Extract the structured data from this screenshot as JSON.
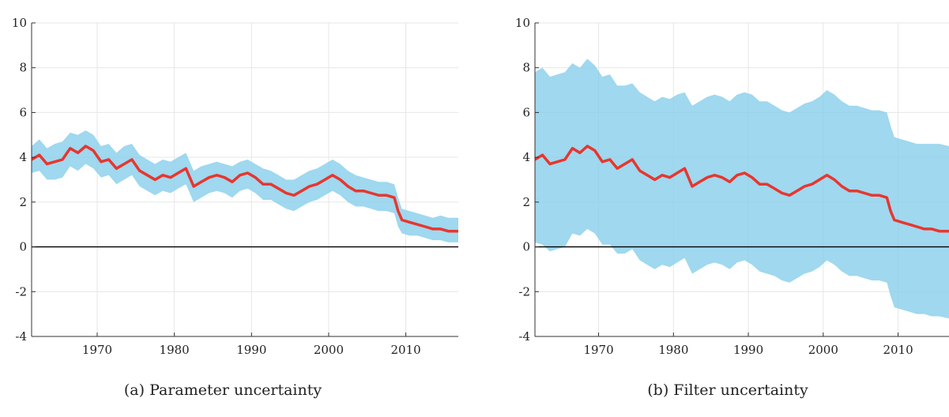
{
  "chart_data": [
    {
      "type": "area",
      "caption": "(a) Parameter uncertainty",
      "xlim": [
        1961.5,
        2016.8
      ],
      "ylim": [
        -4,
        10
      ],
      "x_ticks": [
        1970,
        1980,
        1990,
        2000,
        2010
      ],
      "y_ticks": [
        -4,
        -2,
        0,
        2,
        4,
        6,
        8,
        10
      ],
      "grid": true,
      "zero_line": true,
      "series": [
        {
          "role": "median",
          "color": "#e8362e",
          "x": [
            1961.5,
            1962.5,
            1963.5,
            1964.5,
            1965.5,
            1966.5,
            1967.5,
            1968.5,
            1969.5,
            1970.5,
            1971.5,
            1972.5,
            1973.5,
            1974.5,
            1975.5,
            1976.5,
            1977.5,
            1978.5,
            1979.5,
            1980.5,
            1981.5,
            1982.5,
            1983.5,
            1984.5,
            1985.5,
            1986.5,
            1987.5,
            1988.5,
            1989.5,
            1990.5,
            1991.5,
            1992.5,
            1993.5,
            1994.5,
            1995.5,
            1996.5,
            1997.5,
            1998.5,
            1999.5,
            2000.5,
            2001.5,
            2002.5,
            2003.5,
            2004.5,
            2005.5,
            2006.5,
            2007.5,
            2008.5,
            2009.0,
            2009.5,
            2010.5,
            2011.5,
            2012.5,
            2013.5,
            2014.5,
            2015.5,
            2016.8
          ],
          "y": [
            3.9,
            4.1,
            3.7,
            3.8,
            3.9,
            4.4,
            4.2,
            4.5,
            4.3,
            3.8,
            3.9,
            3.5,
            3.7,
            3.9,
            3.4,
            3.2,
            3.0,
            3.2,
            3.1,
            3.3,
            3.5,
            2.7,
            2.9,
            3.1,
            3.2,
            3.1,
            2.9,
            3.2,
            3.3,
            3.1,
            2.8,
            2.8,
            2.6,
            2.4,
            2.3,
            2.5,
            2.7,
            2.8,
            3.0,
            3.2,
            3.0,
            2.7,
            2.5,
            2.5,
            2.4,
            2.3,
            2.3,
            2.2,
            1.6,
            1.2,
            1.1,
            1.0,
            0.9,
            0.8,
            0.8,
            0.7,
            0.7
          ]
        },
        {
          "role": "band",
          "color": "#87ceeb",
          "x": [
            1961.5,
            1962.5,
            1963.5,
            1964.5,
            1965.5,
            1966.5,
            1967.5,
            1968.5,
            1969.5,
            1970.5,
            1971.5,
            1972.5,
            1973.5,
            1974.5,
            1975.5,
            1976.5,
            1977.5,
            1978.5,
            1979.5,
            1980.5,
            1981.5,
            1982.5,
            1983.5,
            1984.5,
            1985.5,
            1986.5,
            1987.5,
            1988.5,
            1989.5,
            1990.5,
            1991.5,
            1992.5,
            1993.5,
            1994.5,
            1995.5,
            1996.5,
            1997.5,
            1998.5,
            1999.5,
            2000.5,
            2001.5,
            2002.5,
            2003.5,
            2004.5,
            2005.5,
            2006.5,
            2007.5,
            2008.5,
            2009.0,
            2009.5,
            2010.5,
            2011.5,
            2012.5,
            2013.5,
            2014.5,
            2015.5,
            2016.8
          ],
          "upper": [
            4.5,
            4.8,
            4.4,
            4.6,
            4.7,
            5.1,
            5.0,
            5.2,
            5.0,
            4.5,
            4.6,
            4.2,
            4.5,
            4.6,
            4.1,
            3.9,
            3.7,
            3.9,
            3.8,
            4.0,
            4.2,
            3.4,
            3.6,
            3.7,
            3.8,
            3.7,
            3.6,
            3.8,
            3.9,
            3.7,
            3.5,
            3.4,
            3.2,
            3.0,
            3.0,
            3.2,
            3.4,
            3.5,
            3.7,
            3.9,
            3.7,
            3.4,
            3.2,
            3.1,
            3.0,
            2.9,
            2.9,
            2.8,
            2.2,
            1.7,
            1.6,
            1.5,
            1.4,
            1.3,
            1.4,
            1.3,
            1.3
          ],
          "lower": [
            3.3,
            3.4,
            3.0,
            3.0,
            3.1,
            3.6,
            3.4,
            3.7,
            3.5,
            3.1,
            3.2,
            2.8,
            3.0,
            3.2,
            2.7,
            2.5,
            2.3,
            2.5,
            2.4,
            2.6,
            2.8,
            2.0,
            2.2,
            2.4,
            2.5,
            2.4,
            2.2,
            2.5,
            2.6,
            2.4,
            2.1,
            2.1,
            1.9,
            1.7,
            1.6,
            1.8,
            2.0,
            2.1,
            2.3,
            2.5,
            2.3,
            2.0,
            1.8,
            1.8,
            1.7,
            1.6,
            1.6,
            1.5,
            0.9,
            0.6,
            0.5,
            0.5,
            0.4,
            0.3,
            0.3,
            0.2,
            0.2
          ]
        }
      ]
    },
    {
      "type": "area",
      "caption": "(b) Filter uncertainty",
      "xlim": [
        1961.5,
        2016.8
      ],
      "ylim": [
        -4,
        10
      ],
      "x_ticks": [
        1970,
        1980,
        1990,
        2000,
        2010
      ],
      "y_ticks": [
        -4,
        -2,
        0,
        2,
        4,
        6,
        8,
        10
      ],
      "grid": true,
      "zero_line": true,
      "series": [
        {
          "role": "median",
          "color": "#e8362e",
          "x": [
            1961.5,
            1962.5,
            1963.5,
            1964.5,
            1965.5,
            1966.5,
            1967.5,
            1968.5,
            1969.5,
            1970.5,
            1971.5,
            1972.5,
            1973.5,
            1974.5,
            1975.5,
            1976.5,
            1977.5,
            1978.5,
            1979.5,
            1980.5,
            1981.5,
            1982.5,
            1983.5,
            1984.5,
            1985.5,
            1986.5,
            1987.5,
            1988.5,
            1989.5,
            1990.5,
            1991.5,
            1992.5,
            1993.5,
            1994.5,
            1995.5,
            1996.5,
            1997.5,
            1998.5,
            1999.5,
            2000.5,
            2001.5,
            2002.5,
            2003.5,
            2004.5,
            2005.5,
            2006.5,
            2007.5,
            2008.5,
            2009.0,
            2009.5,
            2010.5,
            2011.5,
            2012.5,
            2013.5,
            2014.5,
            2015.5,
            2016.8
          ],
          "y": [
            3.9,
            4.1,
            3.7,
            3.8,
            3.9,
            4.4,
            4.2,
            4.5,
            4.3,
            3.8,
            3.9,
            3.5,
            3.7,
            3.9,
            3.4,
            3.2,
            3.0,
            3.2,
            3.1,
            3.3,
            3.5,
            2.7,
            2.9,
            3.1,
            3.2,
            3.1,
            2.9,
            3.2,
            3.3,
            3.1,
            2.8,
            2.8,
            2.6,
            2.4,
            2.3,
            2.5,
            2.7,
            2.8,
            3.0,
            3.2,
            3.0,
            2.7,
            2.5,
            2.5,
            2.4,
            2.3,
            2.3,
            2.2,
            1.6,
            1.2,
            1.1,
            1.0,
            0.9,
            0.8,
            0.8,
            0.7,
            0.7
          ]
        },
        {
          "role": "band",
          "color": "#87ceeb",
          "x": [
            1961.5,
            1962.5,
            1963.5,
            1964.5,
            1965.5,
            1966.5,
            1967.5,
            1968.5,
            1969.5,
            1970.5,
            1971.5,
            1972.5,
            1973.5,
            1974.5,
            1975.5,
            1976.5,
            1977.5,
            1978.5,
            1979.5,
            1980.5,
            1981.5,
            1982.5,
            1983.5,
            1984.5,
            1985.5,
            1986.5,
            1987.5,
            1988.5,
            1989.5,
            1990.5,
            1991.5,
            1992.5,
            1993.5,
            1994.5,
            1995.5,
            1996.5,
            1997.5,
            1998.5,
            1999.5,
            2000.5,
            2001.5,
            2002.5,
            2003.5,
            2004.5,
            2005.5,
            2006.5,
            2007.5,
            2008.5,
            2009.0,
            2009.5,
            2010.5,
            2011.5,
            2012.5,
            2013.5,
            2014.5,
            2015.5,
            2016.8
          ],
          "upper": [
            7.8,
            8.0,
            7.6,
            7.7,
            7.8,
            8.2,
            8.0,
            8.4,
            8.1,
            7.6,
            7.7,
            7.2,
            7.2,
            7.3,
            6.9,
            6.7,
            6.5,
            6.7,
            6.6,
            6.8,
            6.9,
            6.3,
            6.5,
            6.7,
            6.8,
            6.7,
            6.5,
            6.8,
            6.9,
            6.8,
            6.5,
            6.5,
            6.3,
            6.1,
            6.0,
            6.2,
            6.4,
            6.5,
            6.7,
            7.0,
            6.8,
            6.5,
            6.3,
            6.3,
            6.2,
            6.1,
            6.1,
            6.0,
            5.4,
            4.9,
            4.8,
            4.7,
            4.6,
            4.6,
            4.6,
            4.6,
            4.5
          ],
          "lower": [
            0.2,
            0.1,
            -0.2,
            -0.1,
            0.0,
            0.6,
            0.5,
            0.8,
            0.6,
            0.1,
            0.1,
            -0.3,
            -0.3,
            -0.1,
            -0.6,
            -0.8,
            -1.0,
            -0.8,
            -0.9,
            -0.7,
            -0.5,
            -1.2,
            -1.0,
            -0.8,
            -0.7,
            -0.8,
            -1.0,
            -0.7,
            -0.6,
            -0.8,
            -1.1,
            -1.2,
            -1.3,
            -1.5,
            -1.6,
            -1.4,
            -1.2,
            -1.1,
            -0.9,
            -0.6,
            -0.8,
            -1.1,
            -1.3,
            -1.3,
            -1.4,
            -1.5,
            -1.5,
            -1.6,
            -2.2,
            -2.7,
            -2.8,
            -2.9,
            -3.0,
            -3.0,
            -3.1,
            -3.1,
            -3.2
          ]
        }
      ]
    }
  ]
}
